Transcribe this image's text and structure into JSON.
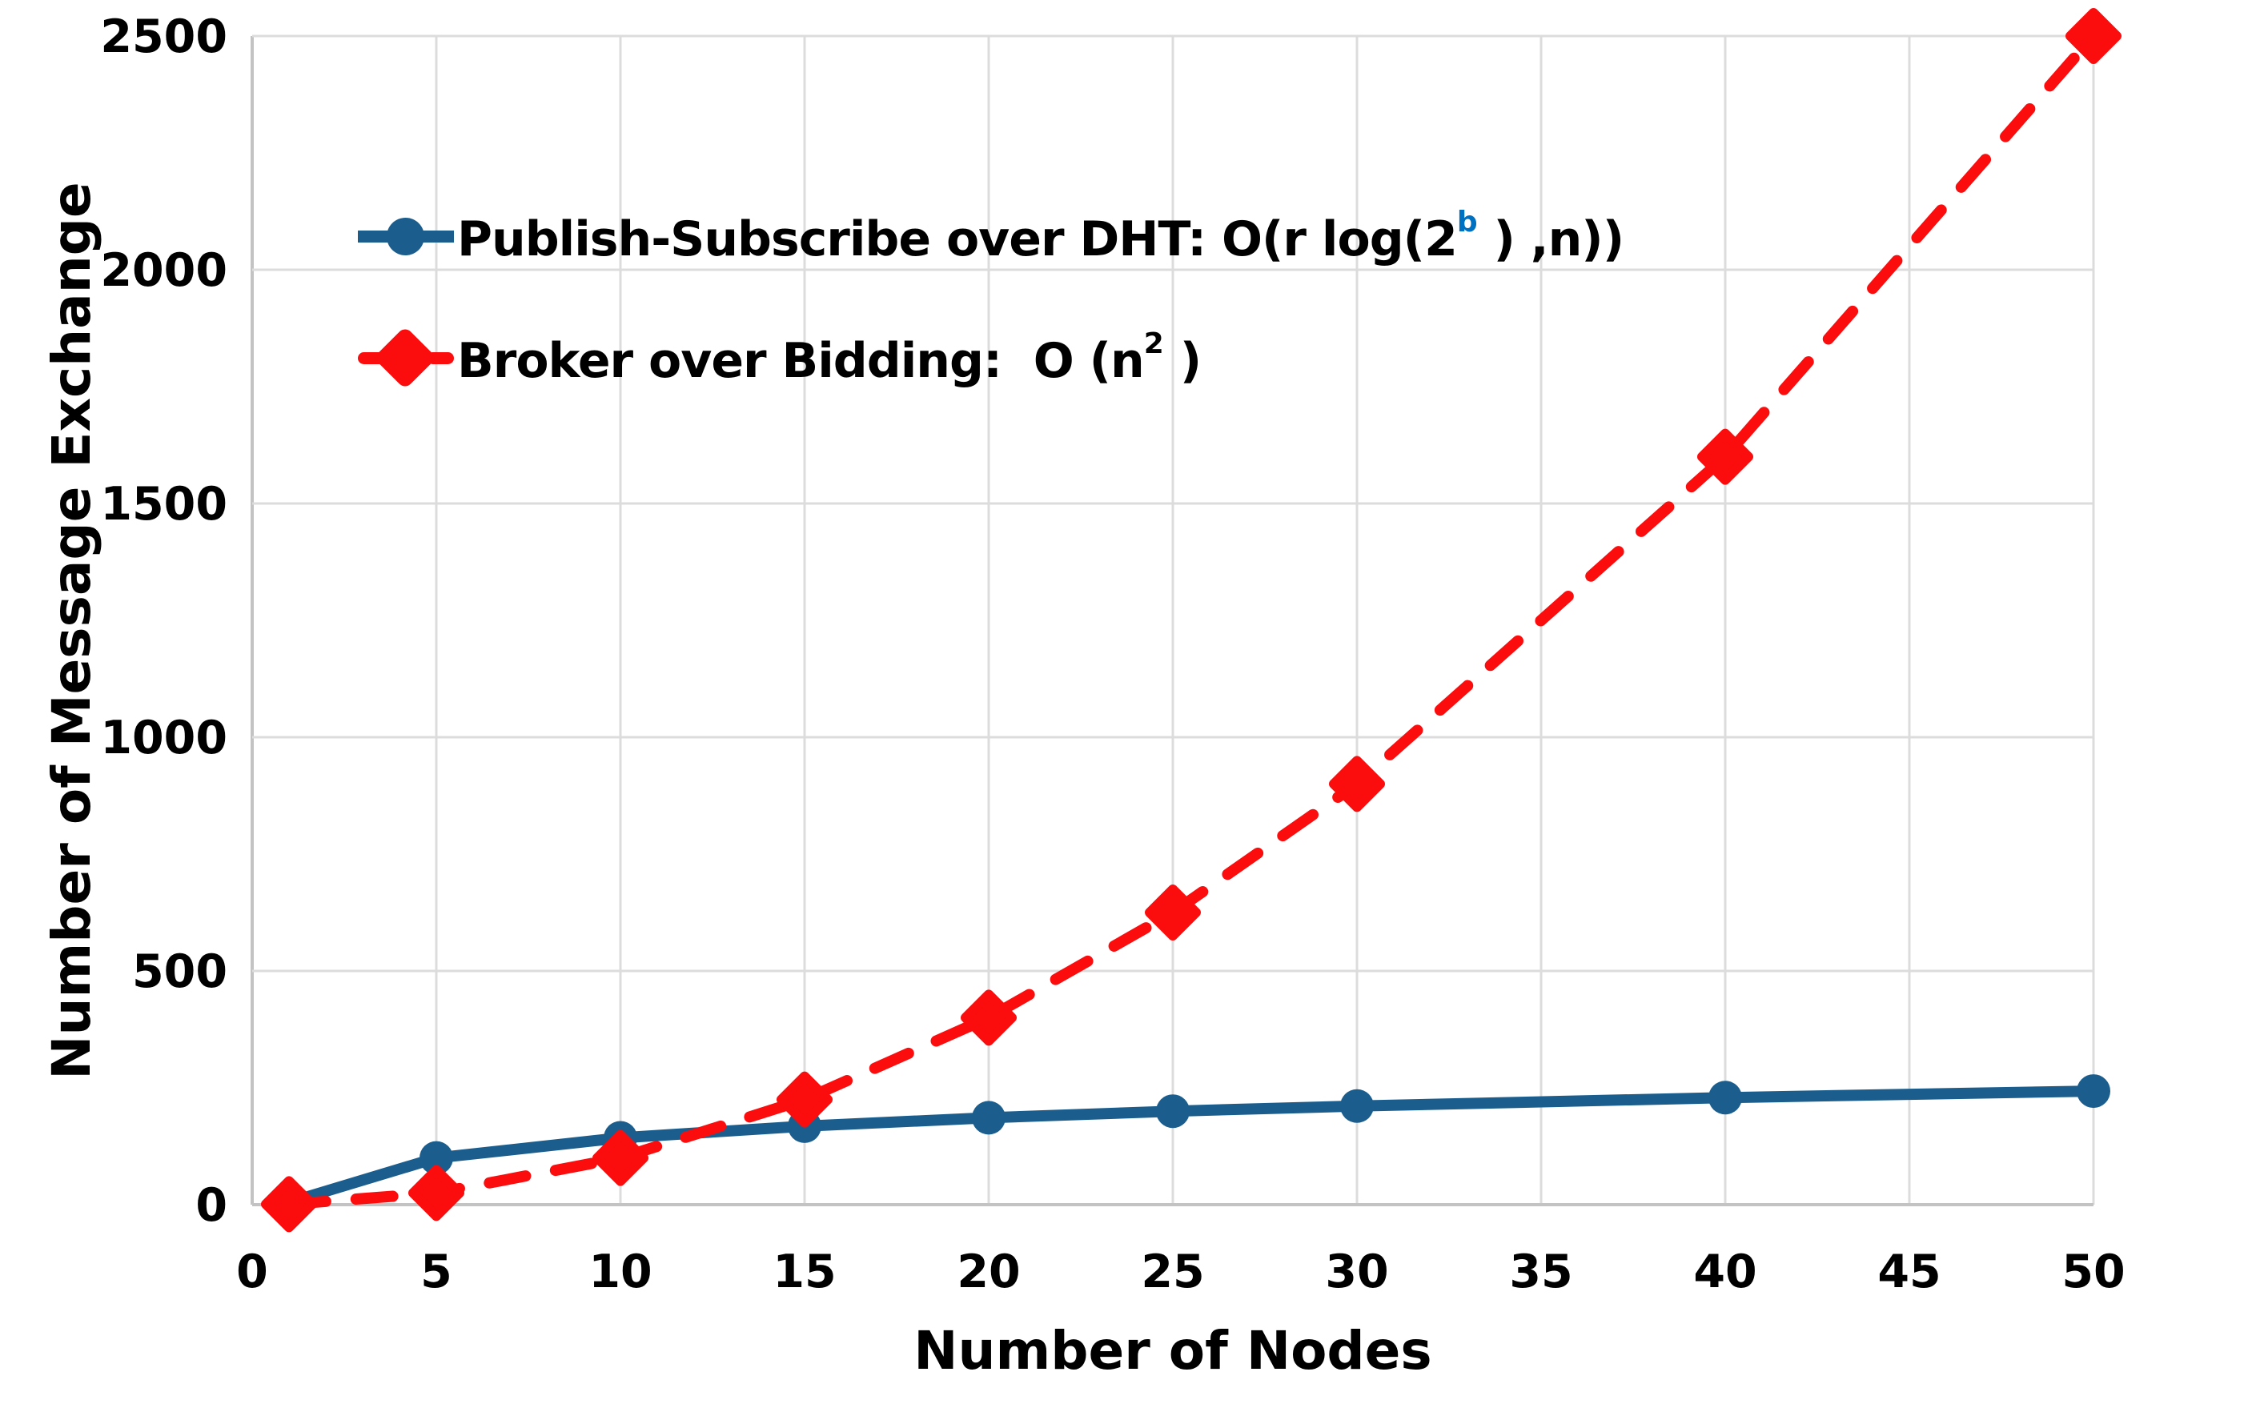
{
  "chart_data": {
    "type": "line",
    "title": "",
    "xlabel": "Number of Nodes",
    "ylabel": "Number of Message Exchange",
    "xlim": [
      0,
      50
    ],
    "ylim": [
      0,
      2500
    ],
    "x_ticks": [
      0,
      5,
      10,
      15,
      20,
      25,
      30,
      35,
      40,
      45,
      50
    ],
    "y_ticks": [
      0,
      500,
      1000,
      1500,
      2000,
      2500
    ],
    "grid": true,
    "legend_position": "top-left-inside",
    "colors": {
      "grid": "#dcdcdc",
      "axis": "#c3c3c3",
      "text": "#000000",
      "background": "#ffffff"
    },
    "series": [
      {
        "id": "dht",
        "name": "Publish-Subscribe over DHT: O(r log(2^b ) ,n))",
        "name_parts": {
          "text1": "Publish-Subscribe over DHT: O(r log(2",
          "sup": "b",
          "text2": " ) ,n))"
        },
        "sup_color": "#0070c0",
        "color": "#1b5e8e",
        "marker": "circle",
        "line_style": "solid",
        "x": [
          1,
          5,
          10,
          15,
          20,
          25,
          30,
          40,
          50
        ],
        "y": [
          5,
          100,
          143,
          168,
          186,
          200,
          211,
          229,
          243
        ]
      },
      {
        "id": "broker",
        "name": "Broker over Bidding:  O (n^2 )",
        "name_parts": {
          "text1": "Broker over Bidding:  O (n",
          "sup": "2",
          "text2": " )"
        },
        "sup_color": "#000000",
        "color": "#fb0d0d",
        "marker": "diamond",
        "line_style": "dashed",
        "x": [
          1,
          5,
          10,
          15,
          20,
          25,
          30,
          40,
          50
        ],
        "y": [
          1,
          25,
          100,
          225,
          400,
          625,
          900,
          1600,
          2500
        ]
      }
    ]
  }
}
